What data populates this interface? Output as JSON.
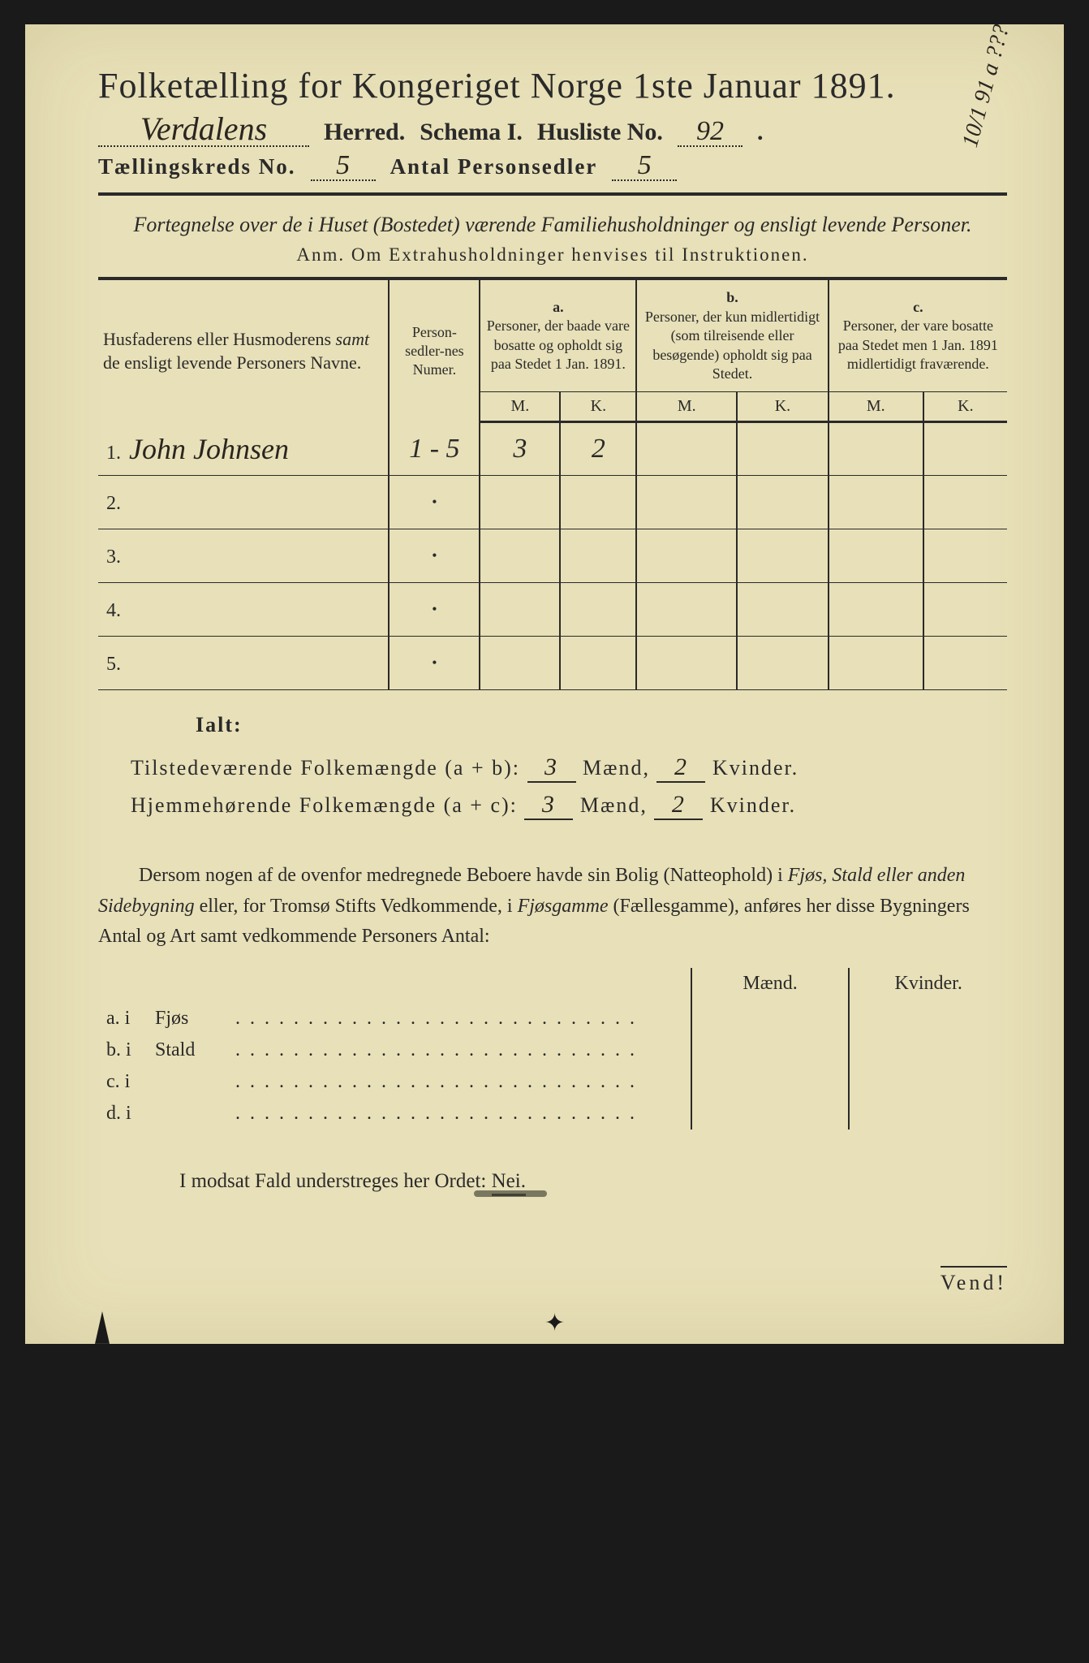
{
  "document": {
    "title": "Folketælling for Kongeriget Norge 1ste Januar 1891.",
    "margin_note": "10/1 91 a ???",
    "header": {
      "herred_value": "Verdalens",
      "herred_label": "Herred.",
      "schema_label": "Schema I.",
      "husliste_label": "Husliste No.",
      "husliste_value": "92",
      "kreds_label": "Tællingskreds No.",
      "kreds_value": "5",
      "personsedler_label": "Antal Personsedler",
      "personsedler_value": "5"
    },
    "subtitle": "Fortegnelse over de i Huset (Bostedet) værende Familiehusholdninger og ensligt levende Personer.",
    "anm": "Anm. Om Extrahusholdninger henvises til Instruktionen.",
    "table": {
      "col_name_header": "Husfaderens eller Husmoderens samt de ensligt levende Personers Navne.",
      "col_num_header": "Person-sedler-nes Numer.",
      "col_a_letter": "a.",
      "col_a_header": "Personer, der baade vare bosatte og opholdt sig paa Stedet 1 Jan. 1891.",
      "col_b_letter": "b.",
      "col_b_header": "Personer, der kun midlertidigt (som tilreisende eller besøgende) opholdt sig paa Stedet.",
      "col_c_letter": "c.",
      "col_c_header": "Personer, der vare bosatte paa Stedet men 1 Jan. 1891 midlertidigt fraværende.",
      "m_label": "M.",
      "k_label": "K.",
      "rows": [
        {
          "num": "1.",
          "name": "John Johnsen",
          "sedler": "1 - 5",
          "a_m": "3",
          "a_k": "2",
          "b_m": "",
          "b_k": "",
          "c_m": "",
          "c_k": ""
        },
        {
          "num": "2.",
          "name": "",
          "sedler": "",
          "a_m": "",
          "a_k": "",
          "b_m": "",
          "b_k": "",
          "c_m": "",
          "c_k": ""
        },
        {
          "num": "3.",
          "name": "",
          "sedler": "",
          "a_m": "",
          "a_k": "",
          "b_m": "",
          "b_k": "",
          "c_m": "",
          "c_k": ""
        },
        {
          "num": "4.",
          "name": "",
          "sedler": "",
          "a_m": "",
          "a_k": "",
          "b_m": "",
          "b_k": "",
          "c_m": "",
          "c_k": ""
        },
        {
          "num": "5.",
          "name": "",
          "sedler": "",
          "a_m": "",
          "a_k": "",
          "b_m": "",
          "b_k": "",
          "c_m": "",
          "c_k": ""
        }
      ]
    },
    "ialt_label": "Ialt:",
    "totals": {
      "line1_label": "Tilstedeværende Folkemængde (a + b):",
      "line1_m": "3",
      "line1_k": "2",
      "line2_label": "Hjemmehørende Folkemængde (a + c):",
      "line2_m": "3",
      "line2_k": "2",
      "maend_label": "Mænd,",
      "kvinder_label": "Kvinder."
    },
    "paragraph": "Dersom nogen af de ovenfor medregnede Beboere havde sin Bolig (Natteophold) i Fjøs, Stald eller anden Sidebygning eller, for Tromsø Stifts Vedkommende, i Fjøsgamme (Fællesgamme), anføres her disse Bygningers Antal og Art samt vedkommende Personers Antal:",
    "lower_table": {
      "maend_header": "Mænd.",
      "kvinder_header": "Kvinder.",
      "rows": [
        {
          "label": "a. i",
          "type": "Fjøs"
        },
        {
          "label": "b. i",
          "type": "Stald"
        },
        {
          "label": "c. i",
          "type": ""
        },
        {
          "label": "d. i",
          "type": ""
        }
      ]
    },
    "nei_line": "I modsat Fald understreges her Ordet:",
    "nei_word": "Nei.",
    "vend": "Vend!"
  },
  "colors": {
    "paper": "#e8e0b8",
    "ink": "#2a2a2a",
    "background": "#1a1a1a"
  }
}
